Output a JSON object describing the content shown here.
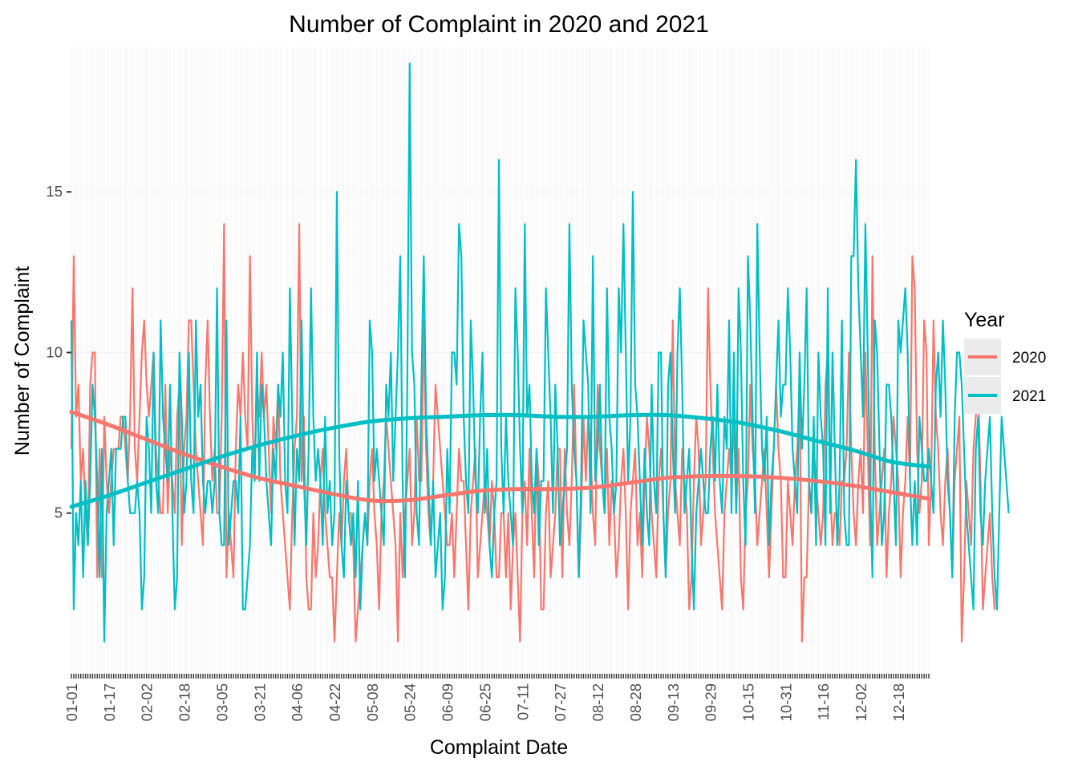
{
  "chart_data": {
    "type": "line",
    "title": "Number of Complaint in 2020 and 2021",
    "xlabel": "Complaint Date",
    "ylabel": "Number of Complaint",
    "x_tick_labels": [
      "01-01",
      "01-17",
      "02-02",
      "02-18",
      "03-05",
      "03-21",
      "04-06",
      "04-22",
      "05-08",
      "05-24",
      "06-09",
      "06-25",
      "07-11",
      "07-27",
      "08-12",
      "08-28",
      "09-13",
      "09-29",
      "10-15",
      "10-31",
      "11-16",
      "12-02",
      "12-18"
    ],
    "y_ticks": [
      5,
      10,
      15
    ],
    "ylim": [
      0,
      19.5
    ],
    "n_days": 366,
    "grid": true,
    "legend": {
      "title": "Year",
      "position": "right"
    },
    "series": [
      {
        "name": "2020",
        "color": "#F8766D",
        "values": [
          7,
          13,
          8,
          9,
          6,
          7,
          5,
          4,
          9,
          10,
          10,
          3,
          7,
          3,
          8,
          6,
          5,
          6,
          7,
          7,
          7,
          8,
          8,
          7,
          6,
          8,
          12,
          7,
          6,
          8,
          10,
          11,
          9,
          8,
          9,
          10,
          7,
          6,
          5,
          5,
          9,
          5,
          7,
          6,
          5,
          8,
          9,
          4,
          7,
          8,
          11,
          11,
          9,
          7,
          6,
          5,
          4,
          9,
          11,
          8,
          6,
          7,
          5,
          5,
          8,
          14,
          3,
          5,
          4,
          3,
          7,
          9,
          8,
          10,
          8,
          7,
          13,
          8,
          6,
          9,
          8,
          10,
          8,
          9,
          7,
          5,
          8,
          7,
          9,
          6,
          5,
          4,
          3,
          2,
          5,
          7,
          8,
          14,
          6,
          8,
          3,
          2,
          2,
          5,
          3,
          4,
          6,
          7,
          5,
          4,
          3,
          3,
          1,
          3,
          5,
          4,
          6,
          7,
          5,
          5,
          4,
          1,
          2,
          3,
          4,
          5,
          4,
          6,
          7,
          5,
          4,
          2,
          5,
          6,
          8,
          7,
          6,
          5,
          4,
          1,
          5,
          3,
          5,
          6,
          7,
          4,
          5,
          8,
          6,
          6,
          11,
          7,
          5,
          4,
          6,
          9,
          8,
          7,
          6,
          5,
          4,
          4,
          5,
          3,
          5,
          7,
          6,
          6,
          4,
          2,
          5,
          6,
          7,
          3,
          4,
          5,
          6,
          5,
          4,
          6,
          5,
          3,
          3,
          5,
          5,
          3,
          5,
          2,
          4,
          5,
          3,
          1,
          5,
          6,
          4,
          7,
          5,
          3,
          7,
          6,
          2,
          2,
          5,
          6,
          3,
          4,
          5,
          7,
          7,
          3,
          7,
          5,
          4,
          6,
          9,
          6,
          3,
          5,
          8,
          6,
          8,
          7,
          5,
          4,
          9,
          7,
          6,
          5,
          7,
          4,
          6,
          5,
          3,
          4,
          6,
          7,
          5,
          2,
          5,
          6,
          7,
          4,
          5,
          3,
          6,
          8,
          7,
          5,
          4,
          3,
          6,
          7,
          5,
          3,
          5,
          6,
          11,
          6,
          5,
          4,
          7,
          6,
          5,
          2,
          3,
          6,
          8,
          7,
          4,
          5,
          6,
          12,
          9,
          7,
          5,
          4,
          3,
          2,
          5,
          6,
          7,
          6,
          8,
          5,
          7,
          3,
          2,
          5,
          6,
          9,
          7,
          6,
          4,
          5,
          6,
          7,
          5,
          3,
          5,
          7,
          9,
          7,
          6,
          3,
          3,
          6,
          5,
          4,
          6,
          7,
          9,
          1,
          3,
          3,
          6,
          5,
          7,
          6,
          5,
          4,
          5,
          9,
          10,
          6,
          4,
          5,
          5,
          4,
          6,
          6,
          7,
          10,
          7,
          5,
          4,
          6,
          7,
          5,
          10,
          7,
          4,
          13,
          7,
          4,
          5,
          6,
          7,
          3,
          5,
          6,
          8,
          7,
          6,
          3,
          5,
          6,
          8,
          6,
          13,
          12,
          7,
          5,
          6,
          11,
          10,
          4,
          6,
          11,
          8,
          7,
          5,
          4,
          6,
          7,
          5,
          3,
          6,
          7,
          8,
          1,
          3,
          6,
          5,
          4,
          7,
          8,
          9,
          6,
          2,
          3,
          4,
          5,
          3,
          2
        ]
      },
      {
        "name": "2021",
        "color": "#00BFC4",
        "values": [
          11,
          2,
          5,
          4,
          6,
          3,
          6,
          4,
          6,
          9,
          8,
          6,
          3,
          7,
          1,
          5,
          6,
          7,
          4,
          7,
          7,
          7,
          8,
          8,
          6,
          5,
          5,
          5,
          6,
          5,
          2,
          3,
          8,
          7,
          5,
          10,
          6,
          5,
          11,
          8,
          7,
          6,
          9,
          5,
          2,
          3,
          10,
          8,
          5,
          6,
          10,
          6,
          5,
          11,
          8,
          9,
          6,
          5,
          6,
          6,
          5,
          6,
          12,
          5,
          4,
          4,
          11,
          4,
          5,
          6,
          6,
          5,
          8,
          2,
          2,
          3,
          4,
          7,
          6,
          10,
          6,
          9,
          8,
          6,
          5,
          4,
          7,
          6,
          9,
          8,
          10,
          6,
          5,
          12,
          8,
          4,
          7,
          6,
          11,
          6,
          4,
          7,
          12,
          8,
          6,
          7,
          6,
          4,
          8,
          5,
          6,
          4,
          5,
          15,
          7,
          4,
          3,
          6,
          5,
          4,
          5,
          3,
          6,
          2,
          4,
          5,
          4,
          11,
          10,
          6,
          7,
          6,
          5,
          4,
          9,
          8,
          10,
          6,
          8,
          10,
          13,
          6,
          3,
          9,
          19,
          10,
          9,
          5,
          4,
          9,
          13,
          8,
          6,
          4,
          6,
          3,
          4,
          5,
          2,
          3,
          7,
          5,
          10,
          10,
          9,
          14,
          13,
          8,
          6,
          5,
          11,
          9,
          6,
          5,
          8,
          10,
          5,
          7,
          4,
          3,
          5,
          6,
          16,
          7,
          5,
          8,
          6,
          5,
          4,
          12,
          10,
          7,
          5,
          14,
          8,
          9,
          6,
          5,
          7,
          4,
          6,
          6,
          12,
          10,
          8,
          5,
          9,
          7,
          4,
          5,
          6,
          7,
          14,
          9,
          7,
          6,
          3,
          6,
          11,
          10,
          9,
          5,
          13,
          6,
          7,
          9,
          6,
          5,
          12,
          8,
          7,
          5,
          6,
          12,
          10,
          14,
          10,
          6,
          8,
          15,
          9,
          8,
          6,
          4,
          7,
          5,
          4,
          9,
          6,
          5,
          10,
          10,
          5,
          3,
          9,
          10,
          7,
          5,
          10,
          12,
          9,
          5,
          6,
          7,
          4,
          2,
          5,
          6,
          7,
          6,
          5,
          5,
          7,
          8,
          6,
          9,
          6,
          5,
          8,
          7,
          11,
          5,
          10,
          5,
          12,
          10,
          6,
          4,
          13,
          11,
          8,
          5,
          14,
          10,
          7,
          6,
          8,
          4,
          6,
          7,
          9,
          11,
          8,
          9,
          9,
          12,
          10,
          7,
          6,
          5,
          10,
          7,
          9,
          12,
          6,
          5,
          8,
          4,
          10,
          8,
          7,
          4,
          12,
          5,
          10,
          7,
          4,
          6,
          11,
          5,
          4,
          4,
          13,
          13,
          16,
          12,
          10,
          8,
          14,
          10,
          6,
          3,
          11,
          10,
          7,
          4,
          5,
          9,
          9,
          8,
          6,
          4,
          11,
          10,
          11,
          12,
          10,
          6,
          4,
          6,
          4,
          8,
          7,
          6,
          6,
          7,
          6,
          5,
          9,
          10,
          8,
          11,
          9,
          6,
          5,
          3,
          8,
          10,
          10,
          9,
          7,
          5,
          4,
          3,
          2,
          7,
          8,
          5,
          4,
          6,
          7,
          8,
          5,
          3,
          2,
          5,
          8,
          7,
          6,
          5
        ]
      }
    ],
    "smooth_2020": [
      8.15,
      7.75,
      7.3,
      6.85,
      6.45,
      6.1,
      5.85,
      5.6,
      5.4,
      5.4,
      5.55,
      5.7,
      5.75,
      5.75,
      5.8,
      5.95,
      6.1,
      6.15,
      6.15,
      6.1,
      6.0,
      5.85,
      5.65,
      5.45
    ],
    "smooth_2021": [
      5.2,
      5.55,
      5.95,
      6.35,
      6.75,
      7.1,
      7.4,
      7.65,
      7.85,
      7.95,
      8.0,
      8.05,
      8.05,
      8.0,
      8.0,
      8.05,
      8.05,
      7.95,
      7.8,
      7.55,
      7.25,
      6.95,
      6.6,
      6.45
    ]
  }
}
